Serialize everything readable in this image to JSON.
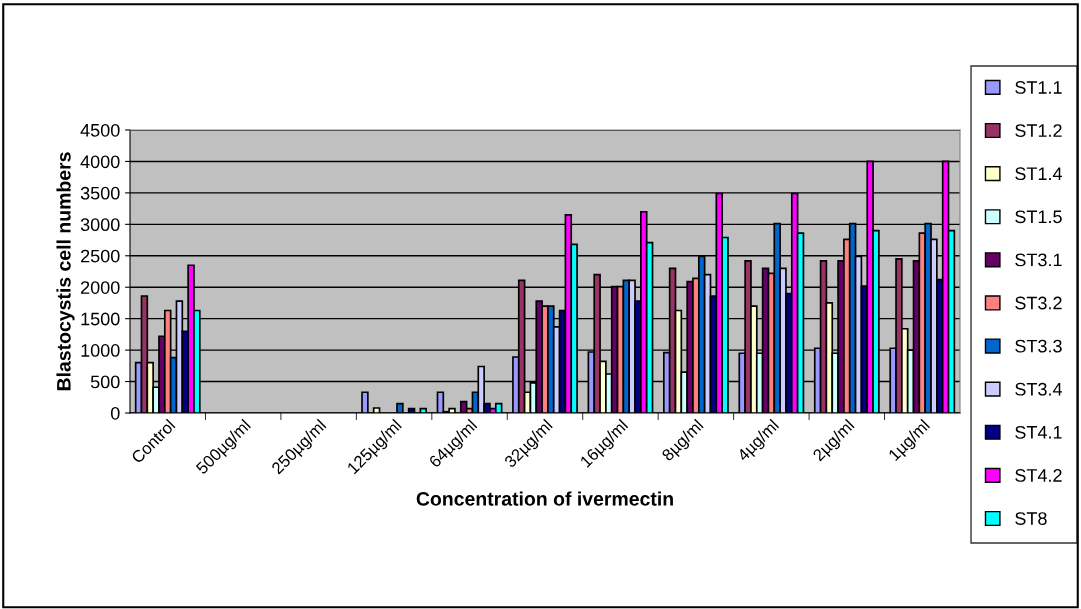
{
  "chart_data": {
    "type": "bar",
    "xlabel": "Concentration of ivermectin",
    "ylabel": "Blastocystis cell numbers",
    "categories": [
      "Control",
      "500µg/ml",
      "250µg/ml",
      "125µg/ml",
      "64µg/ml",
      "32µg/ml",
      "16µg/ml",
      "8µg/ml",
      "4µg/ml",
      "2µg/ml",
      "1µg/ml"
    ],
    "ylim": [
      0,
      4500
    ],
    "yticks": [
      0,
      500,
      1000,
      1500,
      2000,
      2500,
      3000,
      3500,
      4000,
      4500
    ],
    "grid": "y",
    "legend": "right",
    "series": [
      {
        "name": "ST1.1",
        "color": "#9999ff",
        "values": [
          800,
          null,
          null,
          330,
          330,
          890,
          970,
          960,
          950,
          1030,
          1030
        ]
      },
      {
        "name": "ST1.2",
        "color": "#993366",
        "values": [
          1860,
          null,
          null,
          null,
          20,
          2110,
          2200,
          2300,
          2420,
          2420,
          2450
        ]
      },
      {
        "name": "ST1.4",
        "color": "#ffffcc",
        "values": [
          800,
          null,
          null,
          80,
          70,
          330,
          820,
          1630,
          1700,
          1750,
          1340
        ]
      },
      {
        "name": "ST1.5",
        "color": "#ccffff",
        "values": [
          410,
          null,
          null,
          null,
          null,
          480,
          620,
          650,
          950,
          950,
          1000
        ]
      },
      {
        "name": "ST3.1",
        "color": "#660066",
        "values": [
          1220,
          null,
          null,
          null,
          180,
          1780,
          2010,
          2090,
          2300,
          2420,
          2420
        ]
      },
      {
        "name": "ST3.2",
        "color": "#ff8080",
        "values": [
          1630,
          null,
          null,
          null,
          70,
          1700,
          2010,
          2140,
          2220,
          2760,
          2860
        ]
      },
      {
        "name": "ST3.3",
        "color": "#0066cc",
        "values": [
          880,
          null,
          null,
          150,
          330,
          1700,
          2110,
          2490,
          3010,
          3010,
          3010
        ]
      },
      {
        "name": "ST3.4",
        "color": "#ccccff",
        "values": [
          1780,
          null,
          null,
          null,
          740,
          1370,
          2110,
          2200,
          2300,
          2490,
          2760
        ]
      },
      {
        "name": "ST4.1",
        "color": "#000080",
        "values": [
          1300,
          null,
          null,
          70,
          150,
          1630,
          1780,
          1860,
          1900,
          2020,
          2120
        ]
      },
      {
        "name": "ST4.2",
        "color": "#ff00ff",
        "values": [
          2350,
          null,
          null,
          null,
          70,
          3150,
          3200,
          3490,
          3490,
          4000,
          4000
        ]
      },
      {
        "name": "ST8",
        "color": "#00ffff",
        "values": [
          1630,
          null,
          null,
          70,
          150,
          2680,
          2710,
          2790,
          2860,
          2900,
          2900
        ]
      }
    ]
  }
}
